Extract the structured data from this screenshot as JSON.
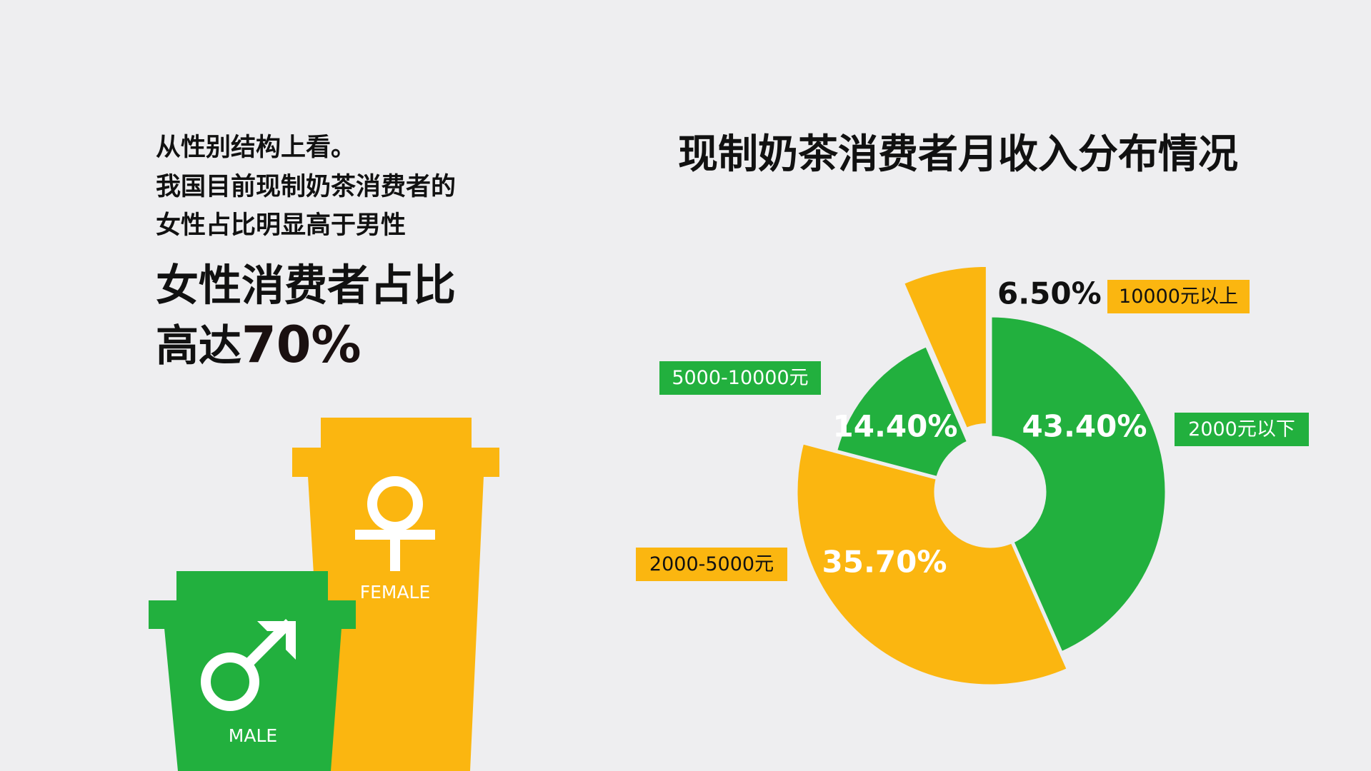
{
  "intro": {
    "lines": [
      "从性别结构上看。",
      "我国目前现制奶茶消费者的",
      "女性占比明显高于男性"
    ],
    "highlight_line1": "女性消费者占比",
    "highlight_prefix": "高达",
    "highlight_value": "70%"
  },
  "cups": {
    "female": "FEMALE",
    "male": "MALE"
  },
  "chart_data": {
    "type": "pie",
    "title": "现制奶茶消费者月收入分布情况",
    "categories": [
      "2000元以下",
      "2000-5000元",
      "5000-10000元",
      "10000元以上"
    ],
    "values": [
      43.4,
      35.7,
      14.4,
      6.5
    ],
    "value_labels": [
      "43.40%",
      "35.70%",
      "14.40%",
      "6.50%"
    ],
    "colors": [
      "#22b03e",
      "#fbb610",
      "#22b03e",
      "#fbb610"
    ]
  }
}
